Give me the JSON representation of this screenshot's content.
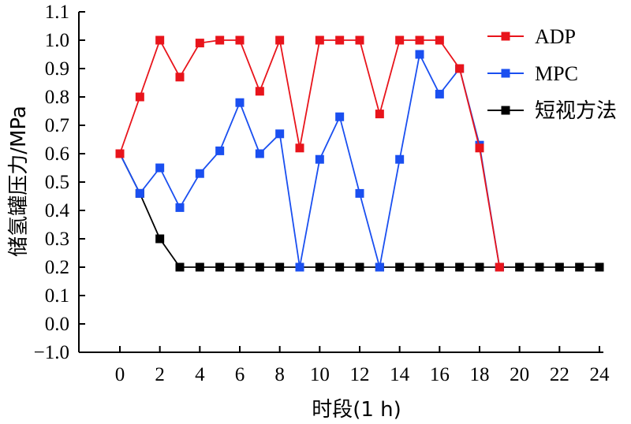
{
  "chart_data": {
    "type": "line",
    "title": "",
    "xlabel": "时段(1 h)",
    "ylabel": "储氢罐压力/MPa",
    "xlim": [
      -2.2,
      24.4
    ],
    "ylim": [
      -1.0,
      1.1
    ],
    "xticks": [
      0,
      2,
      4,
      6,
      8,
      10,
      12,
      14,
      16,
      18,
      20,
      22,
      24
    ],
    "yticks": [
      -1.0,
      0.0,
      0.1,
      0.2,
      0.3,
      0.4,
      0.5,
      0.6,
      0.7,
      0.8,
      0.9,
      1.0,
      1.1
    ],
    "ytick_labels": [
      "−1.0",
      "0.0",
      "0.1",
      "0.2",
      "0.3",
      "0.4",
      "0.5",
      "0.6",
      "0.7",
      "0.8",
      "0.9",
      "1.0",
      "1.1"
    ],
    "ytick_positions_note": "",
    "grid": false,
    "legend_position": "top-right",
    "series": [
      {
        "name": "ADP",
        "color": "#e8141b",
        "x": [
          0,
          1,
          2,
          3,
          4,
          5,
          6,
          7,
          8,
          9,
          10,
          11,
          12,
          13,
          14,
          15,
          16,
          17,
          18,
          19
        ],
        "y": [
          0.6,
          0.8,
          1.0,
          0.87,
          0.99,
          1.0,
          1.0,
          0.82,
          1.0,
          0.62,
          1.0,
          1.0,
          1.0,
          0.74,
          1.0,
          1.0,
          1.0,
          0.9,
          0.62,
          0.2
        ]
      },
      {
        "name": "MPC",
        "color": "#1a4ff0",
        "x": [
          0,
          1,
          2,
          3,
          4,
          5,
          6,
          7,
          8,
          9,
          10,
          11,
          12,
          13,
          14,
          15,
          16,
          17,
          18,
          19
        ],
        "y": [
          0.6,
          0.46,
          0.55,
          0.41,
          0.53,
          0.61,
          0.78,
          0.6,
          0.67,
          0.2,
          0.58,
          0.73,
          0.46,
          0.2,
          0.58,
          0.95,
          0.81,
          0.9,
          0.63,
          0.2
        ]
      },
      {
        "name": "短视方法",
        "color": "#000000",
        "x": [
          0,
          1,
          2,
          3,
          4,
          5,
          6,
          7,
          8,
          9,
          10,
          11,
          12,
          13,
          14,
          15,
          16,
          17,
          18,
          19,
          20,
          21,
          22,
          23,
          24
        ],
        "y": [
          0.6,
          0.46,
          0.3,
          0.2,
          0.2,
          0.2,
          0.2,
          0.2,
          0.2,
          0.2,
          0.2,
          0.2,
          0.2,
          0.2,
          0.2,
          0.2,
          0.2,
          0.2,
          0.2,
          0.2,
          0.2,
          0.2,
          0.2,
          0.2,
          0.2
        ]
      }
    ]
  }
}
